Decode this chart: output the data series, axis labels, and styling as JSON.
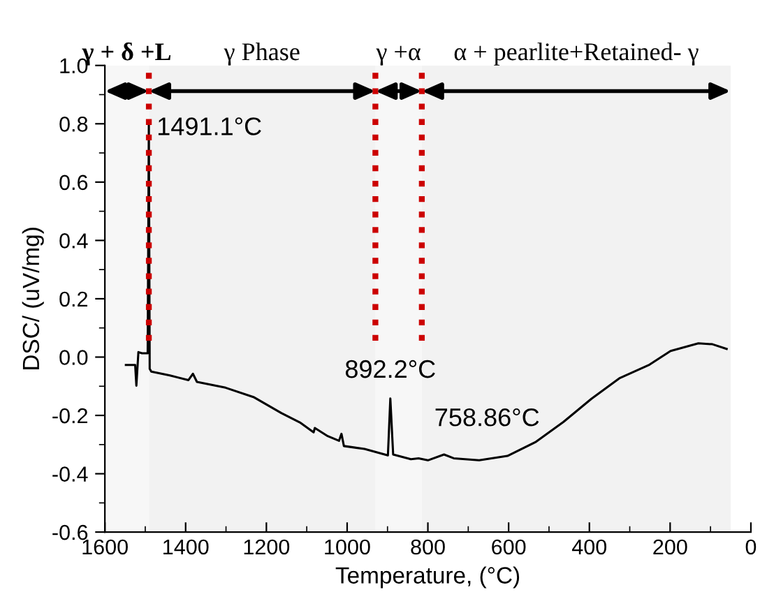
{
  "chart_data": {
    "type": "line",
    "xlabel": "Temperature, (°C)",
    "ylabel": "DSC/ (uV/mg)",
    "xlim": [
      1600,
      0
    ],
    "xticks": [
      1600,
      1400,
      1200,
      1000,
      800,
      600,
      400,
      200,
      0
    ],
    "ylim": [
      -0.6,
      1.0
    ],
    "yticks": [
      {
        "value": -0.6,
        "label": "-0.6"
      },
      {
        "value": -0.4,
        "label": "-0.4"
      },
      {
        "value": -0.2,
        "label": "-0.2"
      },
      {
        "value": 0.0,
        "label": "0.0"
      },
      {
        "value": 0.2,
        "label": "0.2"
      },
      {
        "value": 0.4,
        "label": "0.4"
      },
      {
        "value": 0.6,
        "label": "0.6"
      },
      {
        "value": 0.8,
        "label": "0.8"
      },
      {
        "value": 1.0,
        "label": "1.0"
      }
    ],
    "series": [
      {
        "color": "#000000",
        "x": [
          1548,
          1525,
          1522,
          1517,
          1508,
          1494,
          1491.1,
          1489,
          1485,
          1439,
          1393,
          1382,
          1372,
          1301,
          1232,
          1163,
          1117,
          1083,
          1080,
          1048,
          1020,
          1014,
          1008,
          957,
          899,
          893,
          886,
          842,
          823,
          800,
          760,
          736,
          673,
          603,
          534,
          464,
          395,
          326,
          251,
          199,
          130,
          95,
          60
        ],
        "values": [
          -0.027,
          -0.027,
          -0.098,
          0.017,
          0.013,
          0.013,
          0.81,
          -0.04,
          -0.05,
          -0.063,
          -0.079,
          -0.057,
          -0.085,
          -0.105,
          -0.137,
          -0.192,
          -0.224,
          -0.258,
          -0.243,
          -0.271,
          -0.287,
          -0.263,
          -0.305,
          -0.315,
          -0.337,
          -0.142,
          -0.334,
          -0.35,
          -0.347,
          -0.354,
          -0.334,
          -0.347,
          -0.354,
          -0.339,
          -0.292,
          -0.222,
          -0.143,
          -0.073,
          -0.026,
          0.021,
          0.047,
          0.044,
          0.028
        ]
      }
    ],
    "ref_lines": [
      {
        "axis": "x",
        "value": 1491.1,
        "color": "#cc0000",
        "line_style": "dotted"
      },
      {
        "axis": "x",
        "value": 930,
        "color": "#cc0000",
        "line_style": "dotted"
      },
      {
        "axis": "x",
        "value": 815,
        "color": "#cc0000",
        "line_style": "dotted"
      }
    ],
    "bands": [
      {
        "axis": "x",
        "from": 1600,
        "to": 1491.1,
        "label": "γ + δ +L",
        "color": "#000000"
      },
      {
        "axis": "x",
        "from": 1491.1,
        "to": 930,
        "label": "γ Phase",
        "color": "#000000"
      },
      {
        "axis": "x",
        "from": 930,
        "to": 815,
        "label": "γ +α",
        "color": "#000000"
      },
      {
        "axis": "x",
        "from": 815,
        "to": 50,
        "label": "α + pearlite+Retained- γ",
        "color": "#000000"
      }
    ],
    "annotations": [
      {
        "text": "1491.1°C",
        "x": 1491.1,
        "y": 0.81
      },
      {
        "text": "892.2°C",
        "x": 893,
        "y": -0.142
      },
      {
        "text": "758.86°C",
        "x": 760,
        "y": -0.334
      }
    ],
    "grid": false,
    "legend": false,
    "marker": "none",
    "line_style": "solid"
  }
}
